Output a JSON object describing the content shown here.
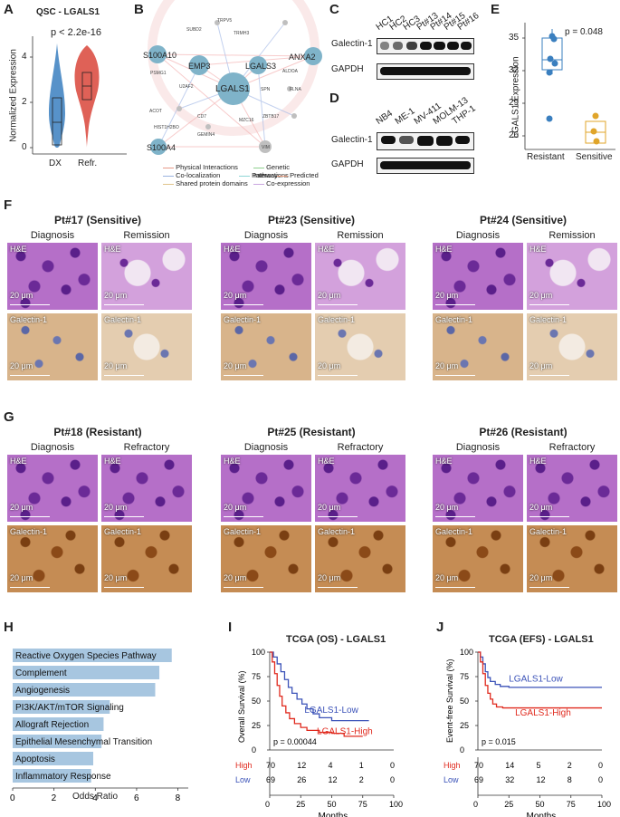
{
  "panels": {
    "A": "A",
    "B": "B",
    "C": "C",
    "D": "D",
    "E": "E",
    "F": "F",
    "G": "G",
    "H": "H",
    "I": "I",
    "J": "J"
  },
  "violin": {
    "title": "QSC - LGALS1",
    "pvalue": "p < 2.2e-16",
    "ylabel": "Normalized Expression",
    "yticks": [
      "0",
      "2",
      "4"
    ],
    "categories": [
      "DX",
      "Refr."
    ],
    "colors": [
      "#3a7fbf",
      "#d9453a"
    ]
  },
  "network": {
    "hub": "LGALS1",
    "nodes_big": [
      "S100A10",
      "EMP3",
      "LGALS3",
      "ANXA2",
      "S100A4"
    ],
    "nodes_small": [
      "TRPV5",
      "SUBD2",
      "TRMH3",
      "PSMG1",
      "U2AF2",
      "ALDOA",
      "SPN",
      "FLNA",
      "ACOT",
      "CD7",
      "MZC16",
      "ZBTB17",
      "HIST1H2BO",
      "GEMIN4",
      "VIM"
    ],
    "legend": [
      "Physical Interactions",
      "Co-localization",
      "Shared protein domains",
      "Genetic Interactions",
      "Pathway",
      "Predicted",
      "Co-expression"
    ],
    "legend_colors": [
      "#e79a8a",
      "#9bb3e0",
      "#e0c38a",
      "#8fd08f",
      "#8fd6d6",
      "#f0a080",
      "#c9a6e0"
    ]
  },
  "blotC": {
    "lanes": [
      "HC1",
      "HC2",
      "HC3",
      "Pt#13",
      "Pt#14",
      "Pt#15",
      "Pt#16"
    ],
    "row1": "Galectin-1",
    "row2": "GAPDH"
  },
  "blotD": {
    "lanes": [
      "NB4",
      "ME-1",
      "MV-411",
      "MOLM-13",
      "THP-1"
    ],
    "row1": "Galectin-1",
    "row2": "GAPDH"
  },
  "scatterE": {
    "pvalue": "p = 0.048",
    "ylabel": "LGALS1 Expression",
    "yticks": [
      "26",
      "29",
      "32",
      "35"
    ],
    "categories": [
      "Resistant",
      "Sensitive"
    ],
    "colors": [
      "#3a7fbf",
      "#e0a52a"
    ]
  },
  "histoF": {
    "groups": [
      {
        "title": "Pt#17 (Sensitive)",
        "left": "Diagnosis",
        "right": "Remission"
      },
      {
        "title": "Pt#23 (Sensitive)",
        "left": "Diagnosis",
        "right": "Remission"
      },
      {
        "title": "Pt#24 (Sensitive)",
        "left": "Diagnosis",
        "right": "Remission"
      }
    ]
  },
  "histoG": {
    "groups": [
      {
        "title": "Pt#18 (Resistant)",
        "left": "Diagnosis",
        "right": "Refractory"
      },
      {
        "title": "Pt#25 (Resistant)",
        "left": "Diagnosis",
        "right": "Refractory"
      },
      {
        "title": "Pt#26 (Resistant)",
        "left": "Diagnosis",
        "right": "Refractory"
      }
    ]
  },
  "histo_labels": {
    "he": "H&E",
    "gal": "Galectin-1",
    "scale": "20 μm"
  },
  "barH": {
    "xlabel": "Odds Ratio",
    "xticks": [
      "0",
      "2",
      "4",
      "6",
      "8"
    ],
    "xlim": [
      0,
      8.5
    ]
  },
  "kmI": {
    "title": "TCGA (OS) - LGALS1",
    "ylabel": "Overall Survival (%)",
    "xlabel": "Months",
    "yticks": [
      "0",
      "25",
      "50",
      "75",
      "100"
    ],
    "xticks": [
      "0",
      "25",
      "50",
      "75",
      "100"
    ],
    "pvalue": "p = 0.00044",
    "low_label": "LGALS1-Low",
    "high_label": "LGALS1-High",
    "risk_high_label": "High",
    "risk_low_label": "Low",
    "risk_high": [
      "70",
      "12",
      "4",
      "1",
      "0"
    ],
    "risk_low": [
      "69",
      "26",
      "12",
      "2",
      "0"
    ]
  },
  "kmJ": {
    "title": "TCGA (EFS) - LGALS1",
    "ylabel": "Event-free Survival (%)",
    "xlabel": "Months",
    "yticks": [
      "0",
      "25",
      "50",
      "75",
      "100"
    ],
    "xticks": [
      "0",
      "25",
      "50",
      "75",
      "100"
    ],
    "pvalue": "p = 0.015",
    "low_label": "LGALS1-Low",
    "high_label": "LGALS1-High",
    "risk_high_label": "High",
    "risk_low_label": "Low",
    "risk_high": [
      "70",
      "14",
      "5",
      "2",
      "0"
    ],
    "risk_low": [
      "69",
      "32",
      "12",
      "8",
      "0"
    ]
  },
  "chart_data": [
    {
      "type": "bar",
      "orientation": "horizontal",
      "categories": [
        "Reactive Oxygen Species Pathway",
        "Complement",
        "Angiogenesis",
        "PI3K/AKT/mTOR  Signaling",
        "Allograft Rejection",
        "Epithelial Mesenchymal Transition",
        "Apoptosis",
        "Inflammatory Response"
      ],
      "values": [
        7.7,
        7.1,
        6.9,
        4.7,
        4.4,
        4.3,
        3.9,
        3.8
      ],
      "xlabel": "Odds Ratio",
      "xlim": [
        0,
        8.5
      ]
    },
    {
      "type": "line",
      "title": "TCGA (OS) - LGALS1",
      "xlabel": "Months",
      "ylabel": "Overall Survival (%)",
      "xlim": [
        0,
        100
      ],
      "ylim": [
        0,
        100
      ],
      "series": [
        {
          "name": "LGALS1-Low",
          "x": [
            0,
            3,
            6,
            9,
            12,
            15,
            18,
            22,
            26,
            30,
            35,
            40,
            50,
            60,
            70,
            80
          ],
          "y": [
            100,
            95,
            88,
            80,
            72,
            64,
            58,
            52,
            47,
            42,
            37,
            33,
            30,
            30,
            30,
            30
          ]
        },
        {
          "name": "LGALS1-High",
          "x": [
            0,
            2,
            4,
            6,
            8,
            10,
            13,
            16,
            20,
            25,
            30,
            40,
            50,
            60,
            75
          ],
          "y": [
            100,
            90,
            78,
            66,
            55,
            45,
            38,
            32,
            27,
            23,
            20,
            18,
            17,
            14,
            14
          ]
        }
      ]
    },
    {
      "type": "line",
      "title": "TCGA (EFS) - LGALS1",
      "xlabel": "Months",
      "ylabel": "Event-free Survival (%)",
      "xlim": [
        0,
        100
      ],
      "ylim": [
        0,
        100
      ],
      "series": [
        {
          "name": "LGALS1-Low",
          "x": [
            0,
            2,
            4,
            6,
            8,
            10,
            14,
            18,
            25,
            35,
            50,
            70,
            90,
            100
          ],
          "y": [
            100,
            95,
            88,
            80,
            74,
            70,
            67,
            65,
            64,
            64,
            64,
            64,
            64,
            64
          ]
        },
        {
          "name": "LGALS1-High",
          "x": [
            0,
            2,
            4,
            6,
            8,
            10,
            12,
            15,
            20,
            30,
            50,
            75,
            100
          ],
          "y": [
            100,
            90,
            78,
            66,
            58,
            52,
            47,
            44,
            43,
            43,
            43,
            43,
            43
          ]
        }
      ]
    }
  ]
}
